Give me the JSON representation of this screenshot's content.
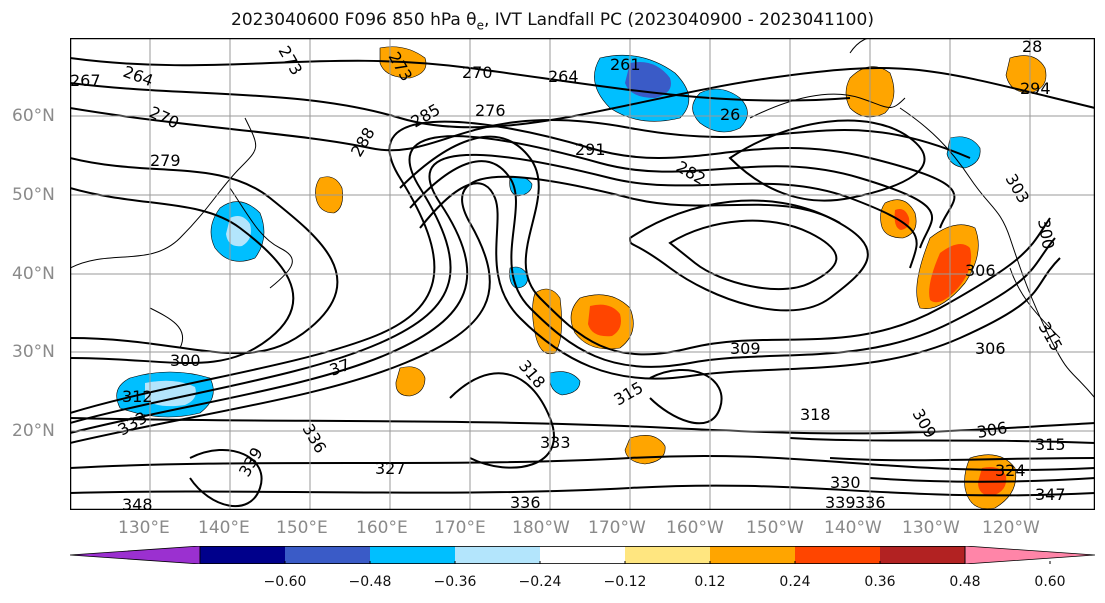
{
  "title": {
    "main": "2023040600 F096 850 hPa θ",
    "sub": "e",
    "rest": ", IVT Landfall PC (2023040900 - 2023041100)"
  },
  "axes": {
    "lat_labels": [
      "60°N",
      "50°N",
      "40°N",
      "30°N",
      "20°N"
    ],
    "lon_labels": [
      "130°E",
      "140°E",
      "150°E",
      "160°E",
      "170°E",
      "180°W",
      "170°W",
      "160°W",
      "150°W",
      "140°W",
      "130°W",
      "120°W"
    ]
  },
  "contour_labels": [
    "267",
    "264",
    "273",
    "273",
    "270",
    "264",
    "261",
    "28",
    "294",
    "270",
    "276",
    "26",
    "285",
    "288",
    "291",
    "279",
    "282",
    "303",
    "300",
    "306",
    "315",
    "300",
    "309",
    "306",
    "318",
    "312",
    "315",
    "318",
    "309",
    "306",
    "315",
    "333",
    "336",
    "333",
    "339",
    "327",
    "324",
    "336",
    "330",
    "339",
    "336",
    "347",
    "348",
    "37"
  ],
  "colorbar": {
    "colors": [
      "#9b30d0",
      "#00008b",
      "#3a5bc7",
      "#00bfff",
      "#b3e5fc",
      "#ffffff",
      "#ffe680",
      "#ffa500",
      "#ff4500",
      "#b22222",
      "#ff85a8"
    ],
    "tick_labels": [
      "−0.60",
      "−0.48",
      "−0.36",
      "−0.24",
      "−0.12",
      "0.12",
      "0.24",
      "0.36",
      "0.48",
      "0.60"
    ],
    "tick_values": [
      -0.6,
      -0.48,
      -0.36,
      -0.24,
      -0.12,
      0.12,
      0.24,
      0.36,
      0.48,
      0.6
    ]
  }
}
